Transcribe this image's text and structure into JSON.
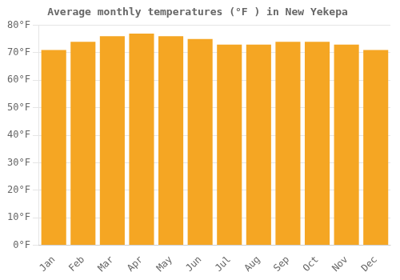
{
  "chart_data": {
    "type": "bar",
    "title": "Average monthly temperatures (°F ) in New Yekepa",
    "categories": [
      "Jan",
      "Feb",
      "Mar",
      "Apr",
      "May",
      "Jun",
      "Jul",
      "Aug",
      "Sep",
      "Oct",
      "Nov",
      "Dec"
    ],
    "values": [
      71,
      74,
      76,
      77,
      76,
      75,
      73,
      73,
      74,
      74,
      73,
      71
    ],
    "color": "#F5A623",
    "ylim": [
      0,
      80
    ],
    "yticks": [
      {
        "value": 0,
        "label": "0°F"
      },
      {
        "value": 10,
        "label": "10°F"
      },
      {
        "value": 20,
        "label": "20°F"
      },
      {
        "value": 30,
        "label": "30°F"
      },
      {
        "value": 40,
        "label": "40°F"
      },
      {
        "value": 50,
        "label": "50°F"
      },
      {
        "value": 60,
        "label": "60°F"
      },
      {
        "value": 70,
        "label": "70°F"
      },
      {
        "value": 80,
        "label": "80°F"
      }
    ],
    "grid": "y"
  }
}
